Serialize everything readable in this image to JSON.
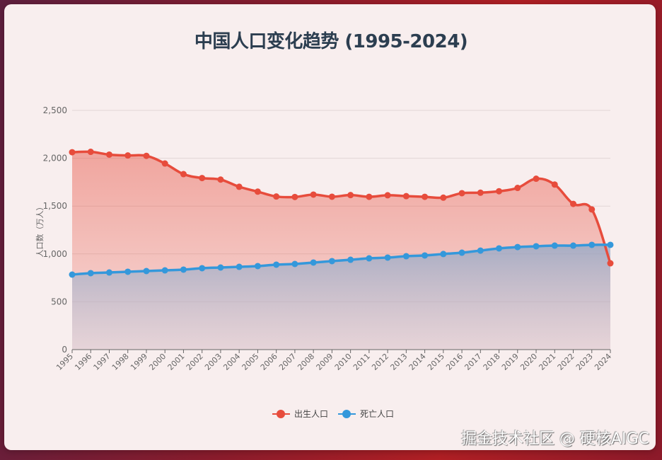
{
  "title": "中国人口变化趋势 (1995-2024)",
  "watermark": "掘金技术社区 @ 硬核AIGC",
  "legend": [
    {
      "label": "出生人口",
      "color": "#e74c3c"
    },
    {
      "label": "死亡人口",
      "color": "#3498db"
    }
  ],
  "chart_data": {
    "type": "area",
    "title": "中国人口变化趋势 (1995-2024)",
    "xlabel": "",
    "ylabel": "人口数（万人）",
    "ylim": [
      0,
      2500
    ],
    "yticks": [
      0,
      500,
      1000,
      1500,
      2000,
      2500
    ],
    "ytick_labels": [
      "0",
      "500",
      "1,000",
      "1,500",
      "2,000",
      "2,500"
    ],
    "grid": true,
    "legend_position": "bottom",
    "x": [
      "1995",
      "1996",
      "1997",
      "1998",
      "1999",
      "2000",
      "2001",
      "2002",
      "2003",
      "2004",
      "2005",
      "2006",
      "2007",
      "2008",
      "2009",
      "2010",
      "2011",
      "2012",
      "2013",
      "2014",
      "2015",
      "2016",
      "2017",
      "2018",
      "2019",
      "2020",
      "2021",
      "2022",
      "2023",
      "2024"
    ],
    "series": [
      {
        "name": "出生人口",
        "color": "#e74c3c",
        "values": [
          2063,
          2067,
          2038,
          2029,
          2025,
          1945,
          1834,
          1793,
          1777,
          1702,
          1651,
          1600,
          1595,
          1620,
          1598,
          1615,
          1597,
          1613,
          1604,
          1597,
          1588,
          1635,
          1640,
          1655,
          1690,
          1786,
          1725,
          1523,
          1465,
          902
        ]
      },
      {
        "name": "死亡人口",
        "color": "#3498db",
        "values": [
          784,
          799,
          806,
          814,
          821,
          828,
          836,
          851,
          858,
          865,
          873,
          888,
          895,
          910,
          925,
          939,
          954,
          962,
          976,
          984,
          999,
          1013,
          1035,
          1058,
          1072,
          1080,
          1087,
          1087,
          1095,
          1095
        ]
      }
    ]
  }
}
